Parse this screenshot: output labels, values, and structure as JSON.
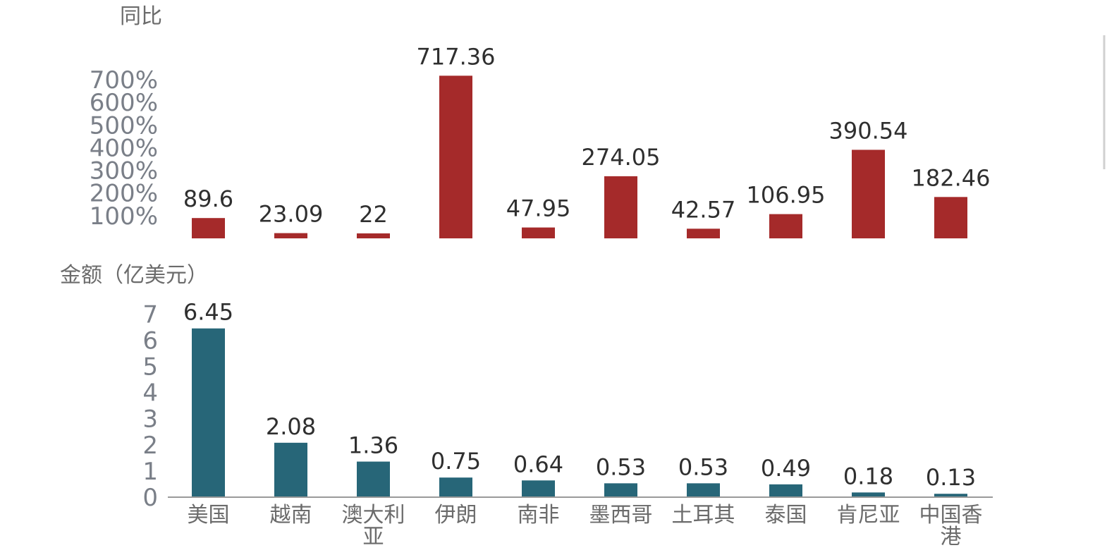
{
  "colors": {
    "yoy": "#a52a2a",
    "amount": "#276678",
    "axis": "#9a9a9a"
  },
  "chart_data": [
    {
      "type": "bar",
      "ylabel": "同比",
      "unit_suffix": "%",
      "ylim": [
        0,
        750
      ],
      "yticks": [
        100,
        200,
        300,
        400,
        500,
        600,
        700
      ],
      "tick_labels": [
        "100%",
        "200%",
        "300%",
        "400%",
        "500%",
        "600%",
        "700%"
      ],
      "categories": [
        "美国",
        "越南",
        "澳大利亚",
        "伊朗",
        "南非",
        "墨西哥",
        "土耳其",
        "泰国",
        "肯尼亚",
        "中国香港"
      ],
      "values": [
        89.6,
        23.09,
        22,
        717.36,
        47.95,
        274.05,
        42.57,
        106.95,
        390.54,
        182.46
      ],
      "data_labels": [
        "89.6",
        "23.09",
        "22",
        "717.36",
        "47.95",
        "274.05",
        "42.57",
        "106.95",
        "390.54",
        "182.46"
      ]
    },
    {
      "type": "bar",
      "ylabel": "金额（亿美元）",
      "ylim": [
        0,
        7.3
      ],
      "yticks": [
        0,
        1,
        2,
        3,
        4,
        5,
        6,
        7
      ],
      "tick_labels": [
        "0",
        "1",
        "2",
        "3",
        "4",
        "5",
        "6",
        "7"
      ],
      "categories": [
        "美国",
        "越南",
        "澳大利亚",
        "伊朗",
        "南非",
        "墨西哥",
        "土耳其",
        "泰国",
        "肯尼亚",
        "中国香港"
      ],
      "category_lines": [
        [
          "美国"
        ],
        [
          "越南"
        ],
        [
          "澳大利",
          "亚"
        ],
        [
          "伊朗"
        ],
        [
          "南非"
        ],
        [
          "墨西哥"
        ],
        [
          "土耳其"
        ],
        [
          "泰国"
        ],
        [
          "肯尼亚"
        ],
        [
          "中国香",
          "港"
        ]
      ],
      "values": [
        6.45,
        2.08,
        1.36,
        0.75,
        0.64,
        0.53,
        0.53,
        0.49,
        0.18,
        0.13
      ],
      "data_labels": [
        "6.45",
        "2.08",
        "1.36",
        "0.75",
        "0.64",
        "0.53",
        "0.53",
        "0.49",
        "0.18",
        "0.13"
      ]
    }
  ]
}
